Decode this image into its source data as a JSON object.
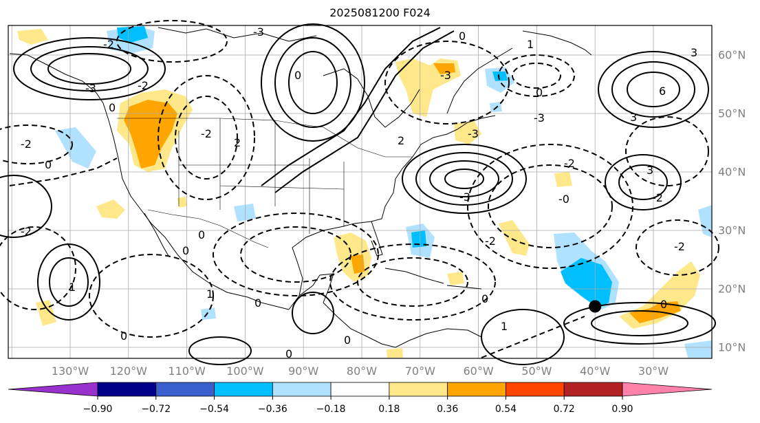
{
  "title": "2025081200 F024",
  "lon_labels": [
    {
      "name": "lon-130w",
      "text": "130°W",
      "lon": -130
    },
    {
      "name": "lon-120w",
      "text": "120°W",
      "lon": -120
    },
    {
      "name": "lon-110w",
      "text": "110°W",
      "lon": -110
    },
    {
      "name": "lon-100w",
      "text": "100°W",
      "lon": -100
    },
    {
      "name": "lon-90w",
      "text": "90°W",
      "lon": -90
    },
    {
      "name": "lon-80w",
      "text": "80°W",
      "lon": -80
    },
    {
      "name": "lon-70w",
      "text": "70°W",
      "lon": -70
    },
    {
      "name": "lon-60w",
      "text": "60°W",
      "lon": -60
    },
    {
      "name": "lon-50w",
      "text": "50°W",
      "lon": -50
    },
    {
      "name": "lon-40w",
      "text": "40°W",
      "lon": -40
    },
    {
      "name": "lon-30w",
      "text": "30°W",
      "lon": -30
    }
  ],
  "lat_labels": [
    {
      "name": "lat-60n",
      "text": "60°N",
      "lat": 60
    },
    {
      "name": "lat-50n",
      "text": "50°N",
      "lat": 50
    },
    {
      "name": "lat-40n",
      "text": "40°N",
      "lat": 40
    },
    {
      "name": "lat-30n",
      "text": "30°N",
      "lat": 30
    },
    {
      "name": "lat-20n",
      "text": "20°N",
      "lat": 20
    },
    {
      "name": "lat-10n",
      "text": "10°N",
      "lat": 10
    }
  ],
  "colorbar": {
    "ticks": [
      "−0.90",
      "−0.72",
      "−0.54",
      "−0.36",
      "−0.18",
      "0.18",
      "0.36",
      "0.54",
      "0.72",
      "0.90"
    ],
    "colors": [
      "#9932cc",
      "#00008b",
      "#3a5fcd",
      "#00bfff",
      "#b0e2ff",
      "#ffffff",
      "#ffe88a",
      "#ffa500",
      "#ff4500",
      "#b22222",
      "#ff82ab"
    ]
  },
  "marker": {
    "lon": -40,
    "lat": 17,
    "color": "#000000"
  }
}
